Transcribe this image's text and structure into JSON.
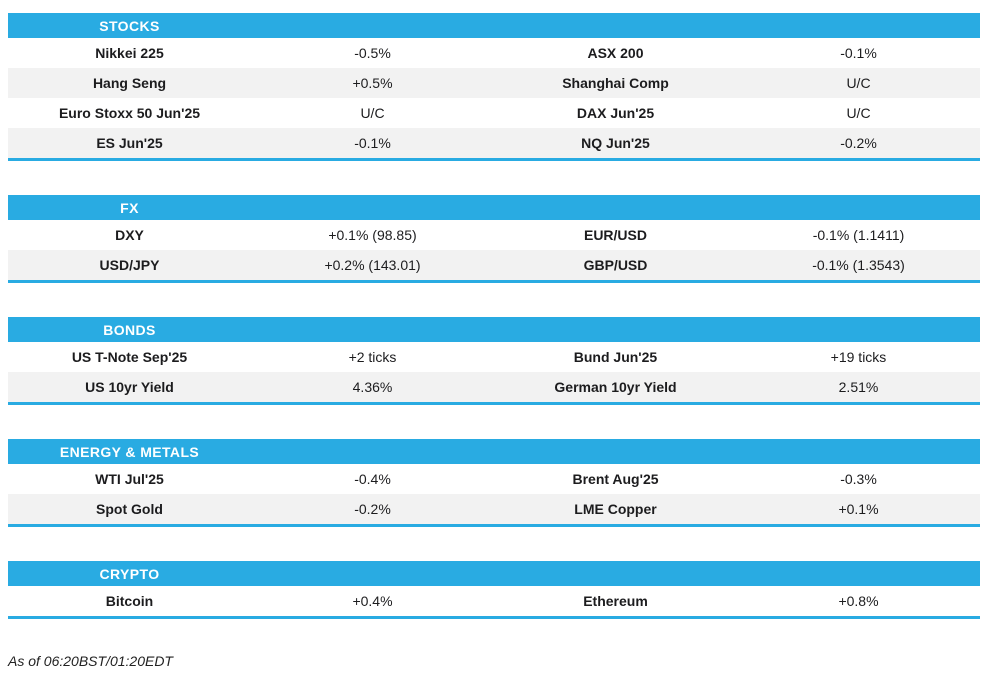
{
  "accent_color": "#29ABE2",
  "row_alt_color": "#F2F2F2",
  "sections": [
    {
      "title": "STOCKS",
      "rows": [
        [
          "Nikkei 225",
          "-0.5%",
          "ASX 200",
          "-0.1%"
        ],
        [
          "Hang Seng",
          "+0.5%",
          "Shanghai Comp",
          "U/C"
        ],
        [
          "Euro Stoxx 50 Jun'25",
          "U/C",
          "DAX Jun'25",
          "U/C"
        ],
        [
          "ES Jun'25",
          "-0.1%",
          "NQ Jun'25",
          "-0.2%"
        ]
      ]
    },
    {
      "title": "FX",
      "rows": [
        [
          "DXY",
          "+0.1% (98.85)",
          "EUR/USD",
          "-0.1% (1.1411)"
        ],
        [
          "USD/JPY",
          "+0.2% (143.01)",
          "GBP/USD",
          "-0.1% (1.3543)"
        ]
      ]
    },
    {
      "title": "BONDS",
      "rows": [
        [
          "US T-Note Sep'25",
          "+2 ticks",
          "Bund Jun'25",
          "+19 ticks"
        ],
        [
          "US 10yr Yield",
          "4.36%",
          "German 10yr Yield",
          "2.51%"
        ]
      ]
    },
    {
      "title": "ENERGY & METALS",
      "rows": [
        [
          "WTI Jul'25",
          "-0.4%",
          "Brent Aug'25",
          "-0.3%"
        ],
        [
          "Spot Gold",
          "-0.2%",
          "LME Copper",
          "+0.1%"
        ]
      ]
    },
    {
      "title": "CRYPTO",
      "rows": [
        [
          "Bitcoin",
          "+0.4%",
          "Ethereum",
          "+0.8%"
        ]
      ]
    }
  ],
  "footer": {
    "as_of": "As of 06:20BST/01:20EDT"
  }
}
